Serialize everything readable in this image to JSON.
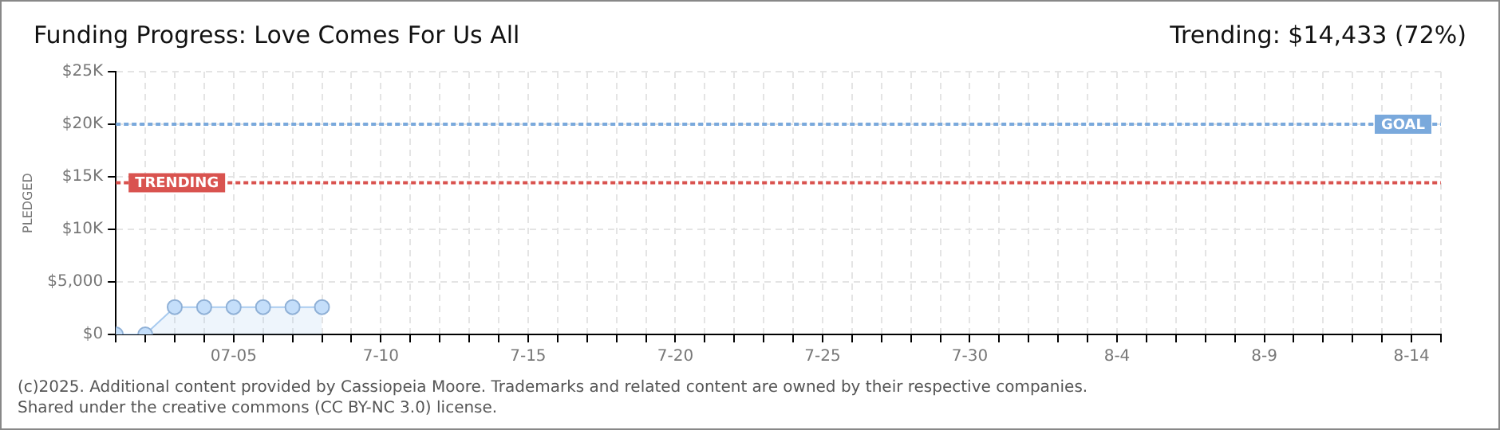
{
  "chart_data": {
    "type": "area",
    "title": "Funding Progress: Love Comes For Us All",
    "ylabel": "PLEDGED",
    "x": [
      "2025-07-01",
      "2025-07-02",
      "2025-07-03",
      "2025-07-04",
      "2025-07-05",
      "2025-07-06",
      "2025-07-07",
      "2025-07-08"
    ],
    "series": [
      {
        "color": "#a9cbef",
        "values": [
          0,
          0,
          2600,
          2600,
          2600,
          2600,
          2600,
          2600
        ]
      }
    ],
    "marker": "circle",
    "grid": true,
    "legend": false,
    "xlim": [
      "2025-07-01",
      "2025-08-15"
    ],
    "xticks": [
      {
        "value": "2025-07-01",
        "label": null
      },
      {
        "value": "2025-07-02",
        "label": null
      },
      {
        "value": "2025-07-03",
        "label": null
      },
      {
        "value": "2025-07-04",
        "label": null
      },
      {
        "value": "2025-07-05",
        "label": "07-05"
      },
      {
        "value": "2025-07-06",
        "label": null
      },
      {
        "value": "2025-07-07",
        "label": null
      },
      {
        "value": "2025-07-08",
        "label": null
      },
      {
        "value": "2025-07-09",
        "label": null
      },
      {
        "value": "2025-07-10",
        "label": "7-10"
      },
      {
        "value": "2025-07-11",
        "label": null
      },
      {
        "value": "2025-07-12",
        "label": null
      },
      {
        "value": "2025-07-13",
        "label": null
      },
      {
        "value": "2025-07-14",
        "label": null
      },
      {
        "value": "2025-07-15",
        "label": "7-15"
      },
      {
        "value": "2025-07-16",
        "label": null
      },
      {
        "value": "2025-07-17",
        "label": null
      },
      {
        "value": "2025-07-18",
        "label": null
      },
      {
        "value": "2025-07-19",
        "label": null
      },
      {
        "value": "2025-07-20",
        "label": "7-20"
      },
      {
        "value": "2025-07-21",
        "label": null
      },
      {
        "value": "2025-07-22",
        "label": null
      },
      {
        "value": "2025-07-23",
        "label": null
      },
      {
        "value": "2025-07-24",
        "label": null
      },
      {
        "value": "2025-07-25",
        "label": "7-25"
      },
      {
        "value": "2025-07-26",
        "label": null
      },
      {
        "value": "2025-07-27",
        "label": null
      },
      {
        "value": "2025-07-28",
        "label": null
      },
      {
        "value": "2025-07-29",
        "label": null
      },
      {
        "value": "2025-07-30",
        "label": "7-30"
      },
      {
        "value": "2025-07-31",
        "label": null
      },
      {
        "value": "2025-08-01",
        "label": null
      },
      {
        "value": "2025-08-02",
        "label": null
      },
      {
        "value": "2025-08-03",
        "label": null
      },
      {
        "value": "2025-08-04",
        "label": "8-4"
      },
      {
        "value": "2025-08-05",
        "label": null
      },
      {
        "value": "2025-08-06",
        "label": null
      },
      {
        "value": "2025-08-07",
        "label": null
      },
      {
        "value": "2025-08-08",
        "label": null
      },
      {
        "value": "2025-08-09",
        "label": "8-9"
      },
      {
        "value": "2025-08-10",
        "label": null
      },
      {
        "value": "2025-08-11",
        "label": null
      },
      {
        "value": "2025-08-12",
        "label": null
      },
      {
        "value": "2025-08-13",
        "label": null
      },
      {
        "value": "2025-08-14",
        "label": "8-14"
      },
      {
        "value": "2025-08-15",
        "label": null
      }
    ],
    "ylim": [
      0,
      25000
    ],
    "yticks": [
      {
        "value": 0,
        "label": "$0"
      },
      {
        "value": 5000,
        "label": "$5,000"
      },
      {
        "value": 10000,
        "label": "$10K"
      },
      {
        "value": 15000,
        "label": "$15K"
      },
      {
        "value": 20000,
        "label": "$20K"
      },
      {
        "value": 25000,
        "label": "$25K"
      }
    ],
    "ref_lines": [
      {
        "axis": "y",
        "value": 20000,
        "label": "GOAL",
        "color": "#7aa9dc",
        "line_style": "dotted"
      },
      {
        "axis": "y",
        "value": 14433,
        "label": "TRENDING",
        "color": "#d9534f",
        "line_style": "dotted"
      }
    ],
    "annotations": [
      "Trending: $14,433 (72%)",
      "(c)2025. Additional content provided by Cassiopeia Moore. Trademarks and related content are owned by their respective companies.",
      "Shared under the creative commons (CC BY-NC 3.0) license."
    ]
  }
}
